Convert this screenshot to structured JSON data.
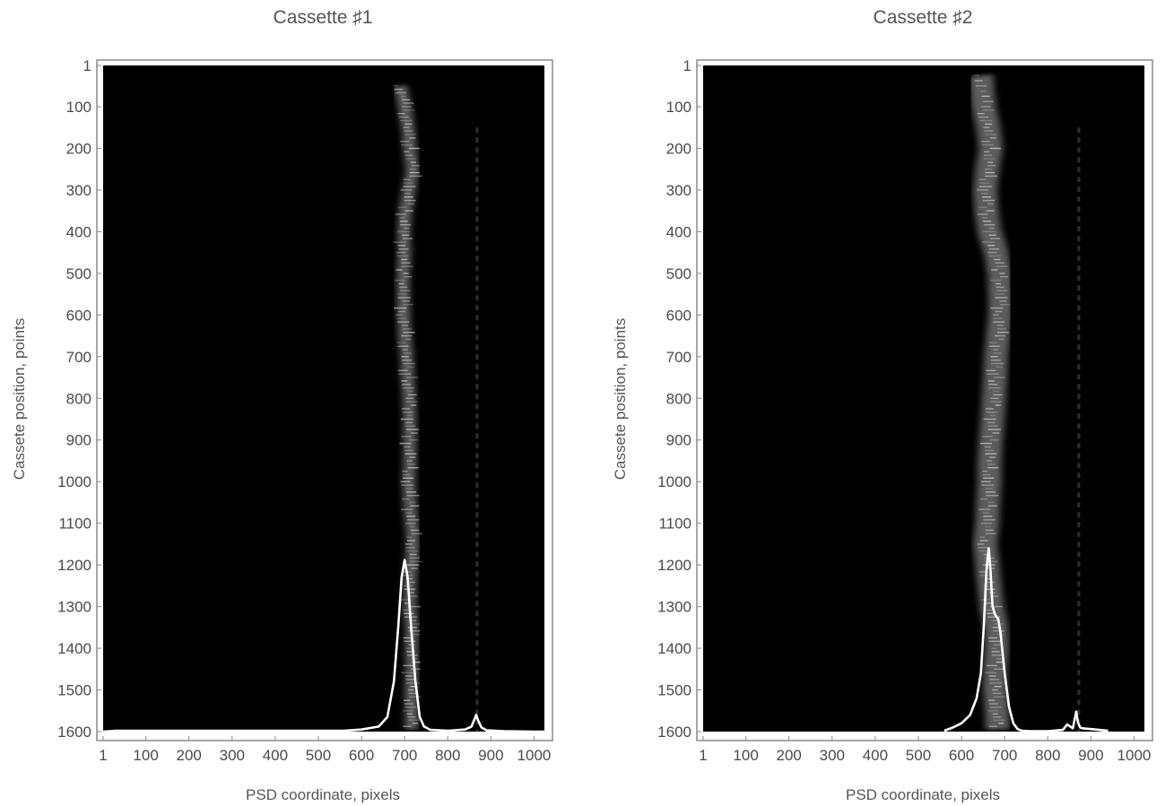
{
  "chart_data": [
    {
      "type": "heatmap",
      "title": "Cassette ♯1",
      "xlabel": "PSD coordinate,  pixels",
      "ylabel": "Cassete position,  points",
      "xlim": [
        1,
        1024
      ],
      "ylim": [
        1600,
        1
      ],
      "y_axis_inverted": true,
      "x_ticks": [
        "1",
        "100",
        "200",
        "300",
        "400",
        "500",
        "600",
        "700",
        "800",
        "900",
        "1000"
      ],
      "y_ticks": [
        "1",
        "100",
        "200",
        "300",
        "400",
        "500",
        "600",
        "700",
        "800",
        "900",
        "1000",
        "1100",
        "1200",
        "1300",
        "1400",
        "1500",
        "1600"
      ],
      "colormap": "grayscale",
      "band_centers": [
        {
          "y": 50,
          "x": 690
        },
        {
          "y": 100,
          "x": 700
        },
        {
          "y": 150,
          "x": 708
        },
        {
          "y": 200,
          "x": 712
        },
        {
          "y": 250,
          "x": 718
        },
        {
          "y": 300,
          "x": 710
        },
        {
          "y": 350,
          "x": 702
        },
        {
          "y": 400,
          "x": 698
        },
        {
          "y": 450,
          "x": 700
        },
        {
          "y": 500,
          "x": 697
        },
        {
          "y": 550,
          "x": 697
        },
        {
          "y": 600,
          "x": 698
        },
        {
          "y": 650,
          "x": 700
        },
        {
          "y": 700,
          "x": 705
        },
        {
          "y": 750,
          "x": 707
        },
        {
          "y": 800,
          "x": 710
        },
        {
          "y": 850,
          "x": 712
        },
        {
          "y": 900,
          "x": 712
        },
        {
          "y": 950,
          "x": 712
        },
        {
          "y": 1000,
          "x": 710
        },
        {
          "y": 1050,
          "x": 712
        },
        {
          "y": 1100,
          "x": 716
        },
        {
          "y": 1150,
          "x": 720
        },
        {
          "y": 1200,
          "x": 715
        },
        {
          "y": 1250,
          "x": 712
        },
        {
          "y": 1300,
          "x": 712
        },
        {
          "y": 1350,
          "x": 716
        },
        {
          "y": 1400,
          "x": 716
        },
        {
          "y": 1450,
          "x": 717
        },
        {
          "y": 1500,
          "x": 715
        },
        {
          "y": 1550,
          "x": 716
        },
        {
          "y": 1595,
          "x": 716
        }
      ],
      "band_width": 30,
      "faint_line_x": 868,
      "profile": {
        "x": [
          1,
          30,
          560,
          600,
          640,
          660,
          675,
          685,
          693,
          700,
          707,
          715,
          725,
          735,
          745,
          760,
          800,
          840,
          855,
          862,
          866,
          870,
          878,
          890,
          930,
          1000,
          1024
        ],
        "y": [
          1600,
          1598,
          1598,
          1595,
          1588,
          1565,
          1480,
          1350,
          1230,
          1188,
          1230,
          1350,
          1480,
          1565,
          1588,
          1596,
          1598,
          1595,
          1588,
          1570,
          1560,
          1572,
          1590,
          1597,
          1599,
          1600,
          1600
        ]
      }
    },
    {
      "type": "heatmap",
      "title": "Cassette ♯2",
      "xlabel": "PSD coordinate,  pixels",
      "ylabel": "Cassete position,  points",
      "xlim": [
        1,
        1024
      ],
      "ylim": [
        1600,
        1
      ],
      "y_axis_inverted": true,
      "x_ticks": [
        "1",
        "100",
        "200",
        "300",
        "400",
        "500",
        "600",
        "700",
        "800",
        "900",
        "1000"
      ],
      "y_ticks": [
        "1",
        "100",
        "200",
        "300",
        "400",
        "500",
        "600",
        "700",
        "800",
        "900",
        "1000",
        "1100",
        "1200",
        "1300",
        "1400",
        "1500",
        "1600"
      ],
      "colormap": "grayscale",
      "band_centers": [
        {
          "y": 25,
          "x": 645
        },
        {
          "y": 100,
          "x": 652
        },
        {
          "y": 150,
          "x": 662
        },
        {
          "y": 200,
          "x": 668
        },
        {
          "y": 250,
          "x": 660
        },
        {
          "y": 300,
          "x": 655
        },
        {
          "y": 350,
          "x": 658
        },
        {
          "y": 400,
          "x": 665
        },
        {
          "y": 450,
          "x": 680
        },
        {
          "y": 500,
          "x": 688
        },
        {
          "y": 550,
          "x": 690
        },
        {
          "y": 600,
          "x": 690
        },
        {
          "y": 650,
          "x": 685
        },
        {
          "y": 700,
          "x": 680
        },
        {
          "y": 750,
          "x": 678
        },
        {
          "y": 800,
          "x": 675
        },
        {
          "y": 850,
          "x": 672
        },
        {
          "y": 900,
          "x": 668
        },
        {
          "y": 950,
          "x": 665
        },
        {
          "y": 1000,
          "x": 665
        },
        {
          "y": 1050,
          "x": 662
        },
        {
          "y": 1100,
          "x": 660
        },
        {
          "y": 1150,
          "x": 655
        },
        {
          "y": 1200,
          "x": 660
        },
        {
          "y": 1250,
          "x": 665
        },
        {
          "y": 1300,
          "x": 670
        },
        {
          "y": 1350,
          "x": 680
        },
        {
          "y": 1400,
          "x": 682
        },
        {
          "y": 1450,
          "x": 678
        },
        {
          "y": 1500,
          "x": 678
        },
        {
          "y": 1550,
          "x": 682
        },
        {
          "y": 1595,
          "x": 684
        }
      ],
      "band_width": 55,
      "faint_line_x": 872,
      "profile": {
        "x": [
          560,
          580,
          600,
          620,
          635,
          645,
          652,
          658,
          663,
          667,
          672,
          678,
          685,
          690,
          695,
          700,
          710,
          720,
          730,
          740,
          760,
          800,
          835,
          845,
          852,
          858,
          862,
          866,
          870,
          875,
          880,
          900,
          940
        ],
        "y": [
          1598,
          1590,
          1580,
          1560,
          1520,
          1460,
          1340,
          1210,
          1160,
          1210,
          1300,
          1320,
          1330,
          1360,
          1410,
          1460,
          1540,
          1580,
          1594,
          1598,
          1599,
          1599,
          1596,
          1583,
          1588,
          1592,
          1572,
          1552,
          1578,
          1590,
          1592,
          1594,
          1598
        ]
      }
    }
  ]
}
